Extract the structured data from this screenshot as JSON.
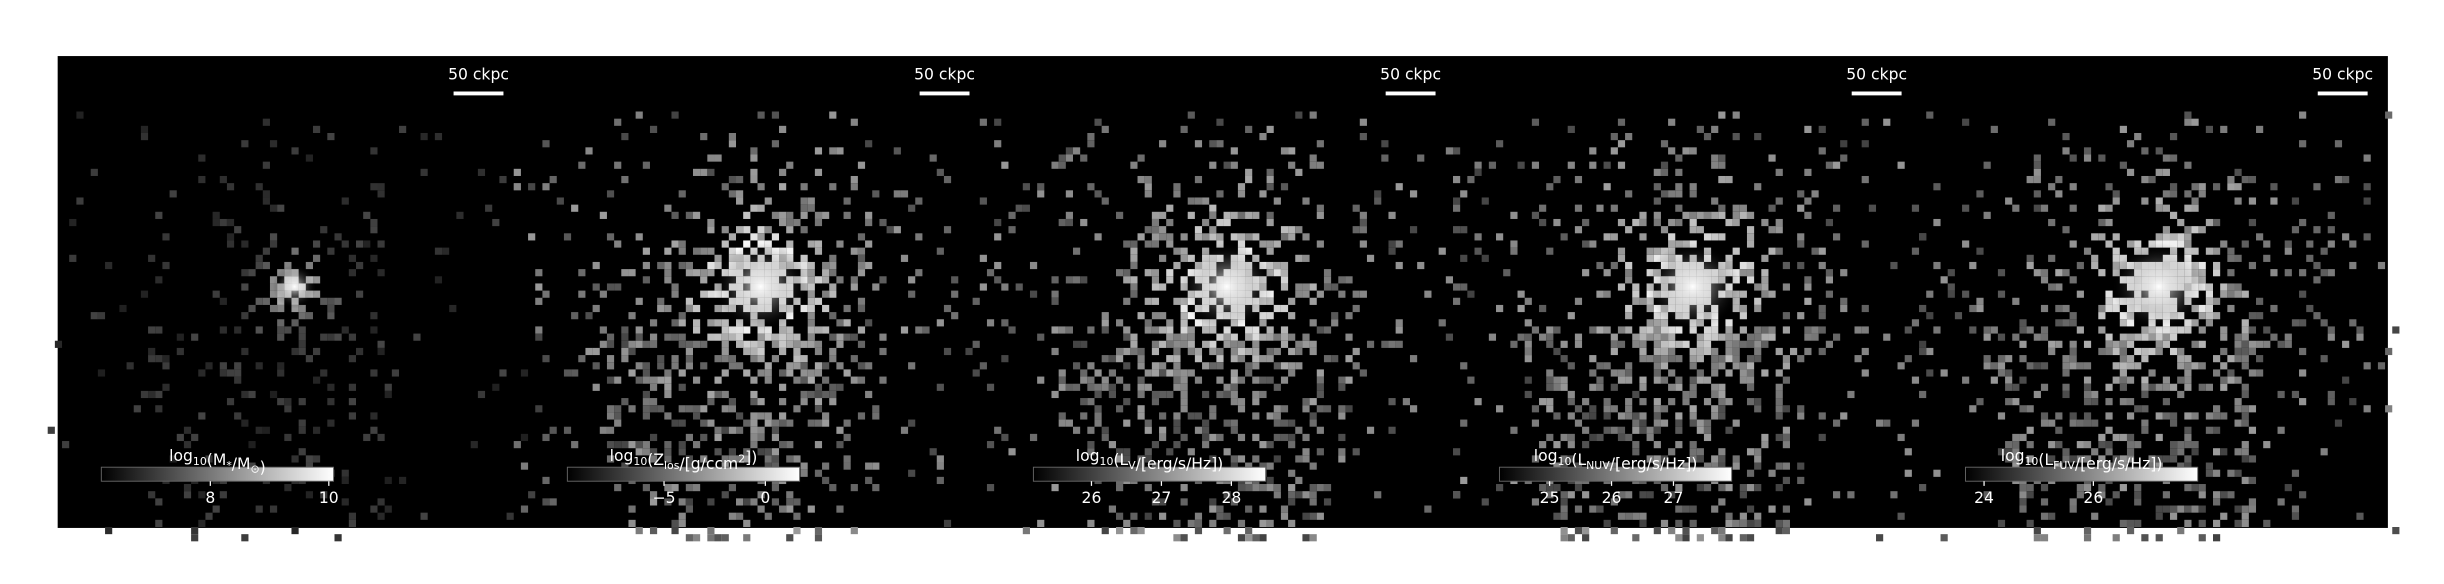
{
  "chart_data": [
    {
      "type": "image",
      "scale_bar": "50 ckpc",
      "colorbar_label": [
        "log",
        {
          "sub": "10"
        },
        "(M",
        {
          "sub": "*"
        },
        "/M",
        {
          "sub": "⊙"
        },
        ")"
      ],
      "clim": [
        6.16,
        10.08
      ],
      "ticks": [
        8,
        10
      ]
    },
    {
      "type": "image",
      "scale_bar": "50 ckpc",
      "colorbar_label": [
        "log",
        {
          "sub": "10"
        },
        "(Z",
        {
          "sub": "los"
        },
        "/[g/ccm",
        {
          "sup": "2"
        },
        "])"
      ],
      "clim": [
        -9.77,
        1.69
      ],
      "ticks": [
        {
          "value": -5,
          "label": "−5"
        },
        0
      ]
    },
    {
      "type": "image",
      "scale_bar": "50 ckpc",
      "colorbar_label": [
        "log",
        {
          "sub": "10"
        },
        "(L",
        {
          "sub": "V"
        },
        "/[erg/s/Hz])"
      ],
      "clim": [
        25.17,
        28.49
      ],
      "ticks": [
        26,
        27,
        28
      ]
    },
    {
      "type": "image",
      "scale_bar": "50 ckpc",
      "colorbar_label": [
        "log",
        {
          "sub": "10"
        },
        "(L",
        {
          "sub": "NUV"
        },
        "/[erg/s/Hz])"
      ],
      "clim": [
        24.19,
        27.94
      ],
      "ticks": [
        25,
        26,
        27
      ]
    },
    {
      "type": "image",
      "scale_bar": "50 ckpc",
      "colorbar_label": [
        "log",
        {
          "sub": "10"
        },
        "(L",
        {
          "sub": "FUV"
        },
        "/[erg/s/Hz])"
      ],
      "clim": [
        23.66,
        27.91
      ],
      "ticks": [
        24,
        26
      ]
    }
  ]
}
